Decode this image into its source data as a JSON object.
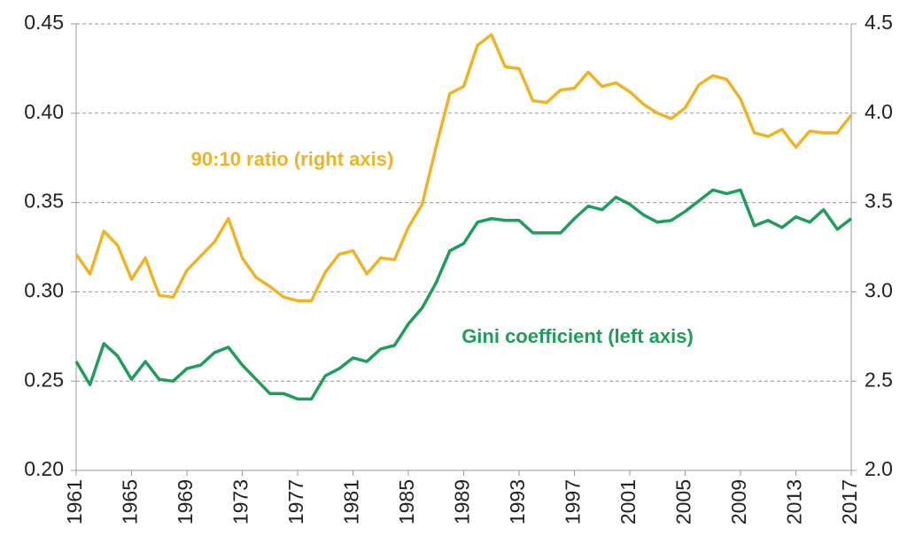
{
  "chart_data": {
    "type": "line",
    "x": [
      1961,
      1962,
      1963,
      1964,
      1965,
      1966,
      1967,
      1968,
      1969,
      1970,
      1971,
      1972,
      1973,
      1974,
      1975,
      1976,
      1977,
      1978,
      1979,
      1980,
      1981,
      1982,
      1983,
      1984,
      1985,
      1986,
      1987,
      1988,
      1989,
      1990,
      1991,
      1992,
      1993,
      1994,
      1995,
      1996,
      1997,
      1998,
      1999,
      2000,
      2001,
      2002,
      2003,
      2004,
      2005,
      2006,
      2007,
      2008,
      2009,
      2010,
      2011,
      2012,
      2013,
      2014,
      2015,
      2016,
      2017
    ],
    "xlim": [
      1961,
      2017
    ],
    "xticks": [
      1961,
      1965,
      1969,
      1973,
      1977,
      1981,
      1985,
      1989,
      1993,
      1997,
      2001,
      2005,
      2009,
      2013,
      2017
    ],
    "ylim": [
      0.2,
      0.45
    ],
    "yticks": [
      {
        "value": 0.2,
        "label": "0.20"
      },
      0.25,
      {
        "value": 0.3,
        "label": "0.30"
      },
      0.35,
      {
        "value": 0.4,
        "label": "0.40"
      },
      0.45
    ],
    "y2lim": [
      2,
      4.5
    ],
    "y2ticks": [
      {
        "value": 2,
        "label": "2.0"
      },
      2.5,
      {
        "value": 3,
        "label": "3.0"
      },
      3.5,
      {
        "value": 4,
        "label": "4.0"
      },
      4.5
    ],
    "grid": true,
    "series": [
      {
        "name": "90:10 ratio (right axis)",
        "color": "#f0b323",
        "axis": "y2",
        "values": [
          3.21,
          3.1,
          3.34,
          3.26,
          3.07,
          3.19,
          2.98,
          2.97,
          3.12,
          3.2,
          3.28,
          3.41,
          3.19,
          3.08,
          3.03,
          2.97,
          2.95,
          2.95,
          3.11,
          3.21,
          3.23,
          3.1,
          3.19,
          3.18,
          3.36,
          3.49,
          3.81,
          4.11,
          4.15,
          4.38,
          4.44,
          4.26,
          4.25,
          4.07,
          4.06,
          4.13,
          4.14,
          4.23,
          4.15,
          4.17,
          4.12,
          4.05,
          4.0,
          3.97,
          4.03,
          4.16,
          4.21,
          4.19,
          4.08,
          3.89,
          3.87,
          3.91,
          3.81,
          3.9,
          3.89,
          3.89,
          3.99
        ]
      },
      {
        "name": "Gini coefficient (left axis)",
        "color": "#1f9d5a",
        "axis": "y",
        "values": [
          0.261,
          0.248,
          0.271,
          0.264,
          0.251,
          0.261,
          0.251,
          0.25,
          0.257,
          0.259,
          0.266,
          0.269,
          0.259,
          0.251,
          0.243,
          0.243,
          0.24,
          0.24,
          0.253,
          0.257,
          0.263,
          0.261,
          0.268,
          0.27,
          0.282,
          0.291,
          0.305,
          0.323,
          0.327,
          0.339,
          0.341,
          0.34,
          0.34,
          0.333,
          0.333,
          0.333,
          0.341,
          0.348,
          0.346,
          0.353,
          0.349,
          0.343,
          0.339,
          0.34,
          0.345,
          0.351,
          0.357,
          0.355,
          0.357,
          0.337,
          0.34,
          0.336,
          0.342,
          0.339,
          0.346,
          0.335,
          0.341
        ]
      }
    ]
  }
}
